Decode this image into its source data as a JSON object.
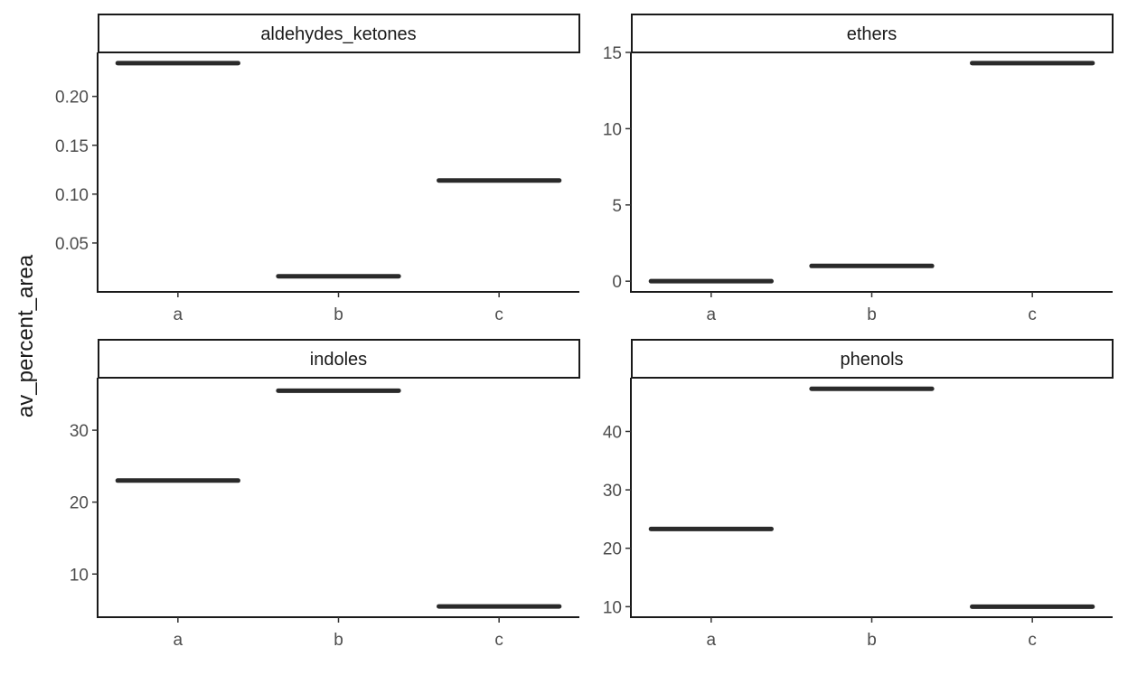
{
  "chart_data": {
    "type": "boxplot",
    "ylabel": "av_percent_area",
    "xlabel": "",
    "categories": [
      "a",
      "b",
      "c"
    ],
    "grid": false,
    "facets": [
      {
        "name": "aldehydes_ketones",
        "values": [
          0.234,
          0.016,
          0.114
        ],
        "ylim": [
          0.0,
          0.245
        ],
        "yticks": [
          0.05,
          0.1,
          0.15,
          0.2
        ],
        "ytick_labels": [
          "0.05",
          "0.10",
          "0.15",
          "0.20"
        ]
      },
      {
        "name": "ethers",
        "values": [
          0.0,
          1.0,
          14.3
        ],
        "ylim": [
          -0.7,
          15.0
        ],
        "yticks": [
          0,
          5,
          10,
          15
        ],
        "ytick_labels": [
          "0",
          "5",
          "10",
          "15"
        ]
      },
      {
        "name": "indoles",
        "values": [
          23.0,
          35.5,
          5.5
        ],
        "ylim": [
          4.0,
          37.3
        ],
        "yticks": [
          10,
          20,
          30
        ],
        "ytick_labels": [
          "10",
          "20",
          "30"
        ]
      },
      {
        "name": "phenols",
        "values": [
          23.3,
          47.3,
          10.0
        ],
        "ylim": [
          8.2,
          49.2
        ],
        "yticks": [
          10,
          20,
          30,
          40
        ],
        "ytick_labels": [
          "10",
          "20",
          "30",
          "40"
        ]
      }
    ]
  }
}
